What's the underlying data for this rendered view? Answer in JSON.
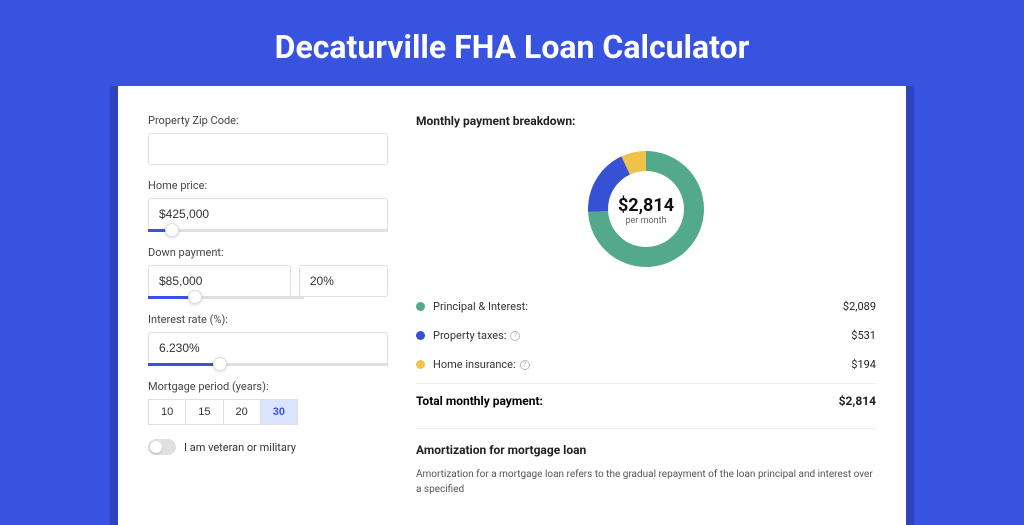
{
  "page": {
    "title": "Decaturville FHA Loan Calculator",
    "colors": {
      "page_bg": "#3853e0",
      "card_bg": "#ffffff",
      "accent": "#3853e0"
    }
  },
  "form": {
    "zip": {
      "label": "Property Zip Code:",
      "value": ""
    },
    "home_price": {
      "label": "Home price:",
      "value": "$425,000",
      "slider_pct": 10
    },
    "down_payment": {
      "label": "Down payment:",
      "value": "$85,000",
      "pct_value": "20%",
      "slider_pct": 20
    },
    "interest": {
      "label": "Interest rate (%):",
      "value": "6.230%",
      "slider_pct": 30
    },
    "period": {
      "label": "Mortgage period (years):",
      "options": [
        "10",
        "15",
        "20",
        "30"
      ],
      "selected": "30"
    },
    "veteran": {
      "label": "I am veteran or military",
      "checked": false
    }
  },
  "breakdown": {
    "title": "Monthly payment breakdown:",
    "donut": {
      "center_value": "$2,814",
      "center_sub": "per month",
      "slices": [
        {
          "label": "Principal & Interest",
          "value_num": 2089,
          "color": "#52a98c",
          "angle_deg": 267
        },
        {
          "label": "Property taxes",
          "value_num": 531,
          "color": "#3651d4",
          "angle_deg": 68
        },
        {
          "label": "Home insurance",
          "value_num": 194,
          "color": "#f0c24a",
          "angle_deg": 25
        }
      ],
      "ring_outer_r": 58,
      "ring_inner_r": 38
    },
    "rows": [
      {
        "dot_color": "#52a98c",
        "label": "Principal & Interest:",
        "info": false,
        "value": "$2,089"
      },
      {
        "dot_color": "#3651d4",
        "label": "Property taxes:",
        "info": true,
        "value": "$531"
      },
      {
        "dot_color": "#f0c24a",
        "label": "Home insurance:",
        "info": true,
        "value": "$194"
      }
    ],
    "total": {
      "label": "Total monthly payment:",
      "value": "$2,814"
    }
  },
  "amortization": {
    "title": "Amortization for mortgage loan",
    "text": "Amortization for a mortgage loan refers to the gradual repayment of the loan principal and interest over a specified"
  }
}
